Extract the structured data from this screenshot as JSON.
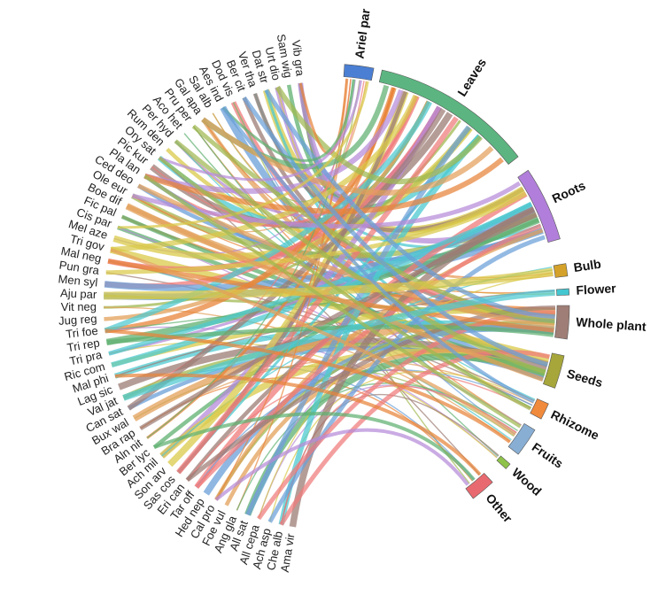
{
  "diagram": {
    "type": "chord",
    "plant_parts": [
      {
        "name": "Ariel par",
        "color": "#4a7fd4"
      },
      {
        "name": "Leaves",
        "color": "#5cb580"
      },
      {
        "name": "Roots",
        "color": "#b17fdb"
      },
      {
        "name": "Bulb",
        "color": "#d4a22a"
      },
      {
        "name": "Flower",
        "color": "#44c7d1"
      },
      {
        "name": "Whole plant",
        "color": "#9e7e76"
      },
      {
        "name": "Seeds",
        "color": "#a6a63a"
      },
      {
        "name": "Rhizome",
        "color": "#f08a3c"
      },
      {
        "name": "Fruits",
        "color": "#88aed4"
      },
      {
        "name": "Wood",
        "color": "#8fc24a"
      },
      {
        "name": "Other",
        "color": "#e86a70"
      }
    ],
    "species": [
      "Vib gra",
      "Sam wig",
      "Urt dio",
      "Dat str",
      "Ver tha",
      "Ber cit",
      "Dod vis",
      "Aes ind",
      "Sal alb",
      "Gal apa",
      "Pru per",
      "Aco het",
      "Per hyd",
      "Rum den",
      "Ory sat",
      "Pic kur",
      "Pla lan",
      "Ced deo",
      "Ole eur",
      "Boe dif",
      "Fic pal",
      "Cis par",
      "Mel aze",
      "Tri gov",
      "Mal neg",
      "Pun gra",
      "Men syl",
      "Aju par",
      "Vit neg",
      "Jug reg",
      "Tri foe",
      "Tri rep",
      "Tri pra",
      "Ric com",
      "Mal phi",
      "Lag sic",
      "Val jat",
      "Can sat",
      "Bux wal",
      "Bra rap",
      "Aln nit",
      "Ber lyc",
      "Ach mil",
      "Son arv",
      "Sas cos",
      "Eri can",
      "Tar off",
      "Hed nep",
      "Cal pro",
      "Foe vul",
      "Ang gla",
      "All sat",
      "All cepa",
      "Ach asp",
      "Che alb",
      "Ama vir"
    ],
    "palette": [
      "#e8843a",
      "#5fb070",
      "#b68bd8",
      "#d9c94a",
      "#4cc9d0",
      "#9c7c74",
      "#f07a7a",
      "#6a9fd8",
      "#a0b850",
      "#e3a05a"
    ]
  }
}
